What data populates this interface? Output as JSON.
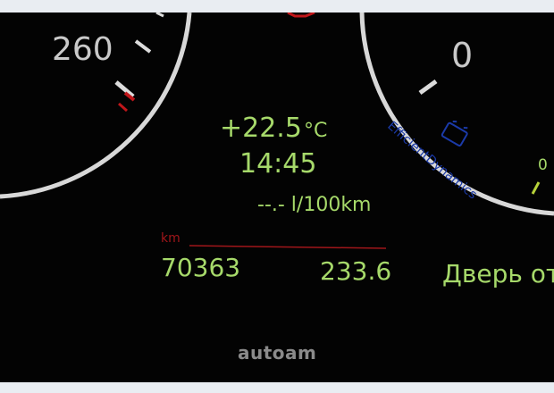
{
  "speedometer": {
    "mark_label": "260"
  },
  "right_gauge": {
    "mark_label": "0",
    "small_mark_label": "0"
  },
  "efficient_dynamics_label": "EfficientDynamics",
  "info_display": {
    "temperature": "+22.5",
    "temperature_unit": "°C",
    "time": "14:45",
    "fuel_consumption": "--.- l/100km",
    "odometer_unit": "km",
    "odometer": "70363",
    "trip": "233.6"
  },
  "message": "Дверь от",
  "watermark": "autoam",
  "colors": {
    "display_green": "#a6d96a",
    "needle_red": "#c0161a",
    "eco_blue": "#1b3aa8",
    "gauge_ring": "#d8d8d8"
  },
  "icons": [
    "battery-icon",
    "efficient-dynamics-arc"
  ]
}
